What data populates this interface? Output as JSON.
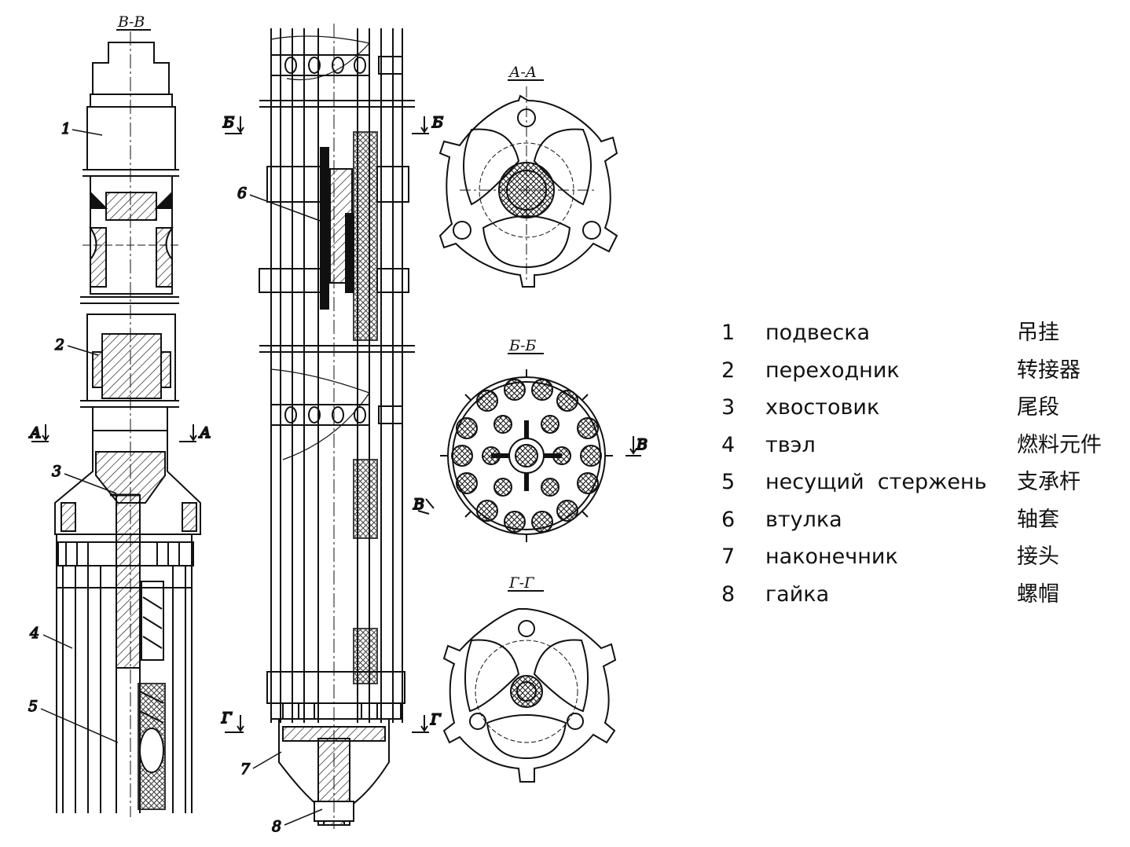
{
  "sections": {
    "vv": "В-В",
    "aa": "А-А",
    "bb": "Б-Б",
    "gg": "Г-Г",
    "cut_a": "А",
    "cut_b": "Б",
    "cut_v": "В",
    "cut_g": "Г"
  },
  "callouts": [
    "1",
    "2",
    "3",
    "4",
    "5",
    "6",
    "7",
    "8"
  ],
  "legend": [
    {
      "num": "1",
      "ru": "подвеска",
      "zh": "吊挂"
    },
    {
      "num": "2",
      "ru": "переходник",
      "zh": "转接器"
    },
    {
      "num": "3",
      "ru": "хвостовик",
      "zh": "尾段"
    },
    {
      "num": "4",
      "ru": "твэл",
      "zh": "燃料元件"
    },
    {
      "num": "5",
      "ru": "несущий  стержень",
      "zh": "支承杆"
    },
    {
      "num": "6",
      "ru": "втулка",
      "zh": "轴套"
    },
    {
      "num": "7",
      "ru": "наконечник",
      "zh": "接头"
    },
    {
      "num": "8",
      "ru": "гайка",
      "zh": "螺帽"
    }
  ]
}
